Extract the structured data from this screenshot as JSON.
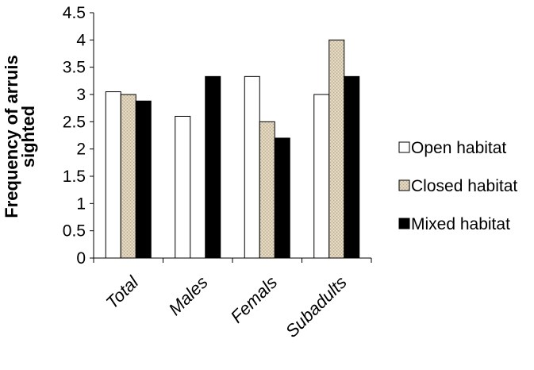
{
  "chart_data": {
    "type": "bar",
    "title": "",
    "xlabel": "",
    "ylabel_lines": [
      "Frequency of arruis",
      "sighted"
    ],
    "categories": [
      "Total",
      "Males",
      "Femals",
      "Subadults"
    ],
    "series": [
      {
        "name": "Open habitat",
        "values": [
          3.05,
          2.6,
          3.33,
          3.0
        ],
        "fill": "#ffffff",
        "pattern": "none"
      },
      {
        "name": "Closed habitat",
        "values": [
          3.0,
          0,
          2.5,
          4.0
        ],
        "fill": "#d8ccb4",
        "pattern": "burlap"
      },
      {
        "name": "Mixed habitat",
        "values": [
          2.88,
          3.33,
          2.2,
          3.33
        ],
        "fill": "#000000",
        "pattern": "none"
      }
    ],
    "ylim": [
      0,
      4.5
    ],
    "yticks": [
      "0",
      "0.5",
      "1",
      "1.5",
      "2",
      "2.5",
      "3",
      "3.5",
      "4",
      "4.5"
    ],
    "grid": false,
    "legend_position": "right"
  }
}
